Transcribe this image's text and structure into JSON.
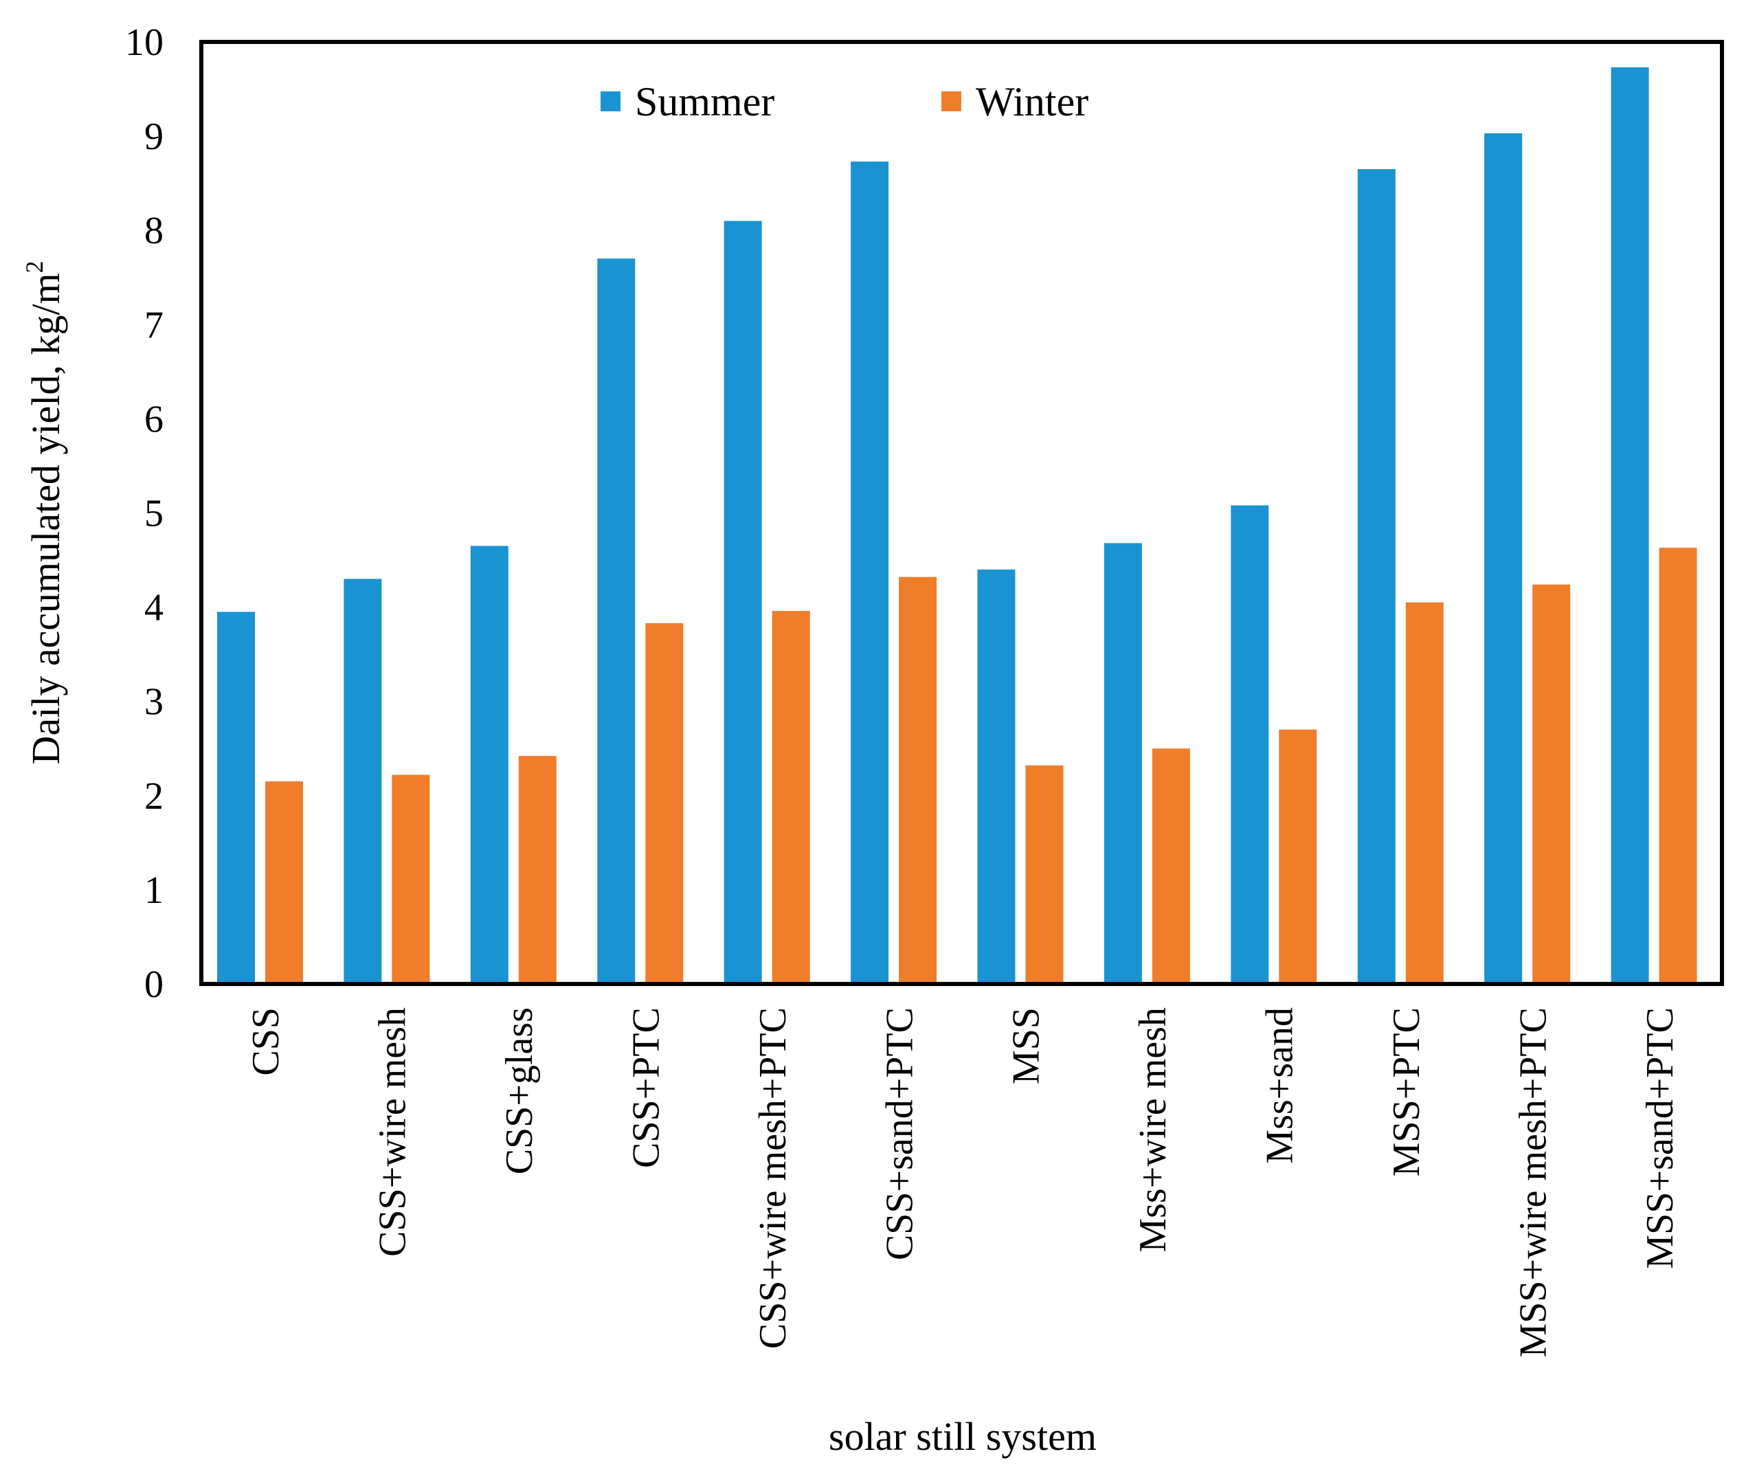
{
  "chart_data": {
    "type": "bar",
    "title": "",
    "xlabel": "solar still system",
    "ylabel": "Daily accumulated yield, kg/m",
    "ylabel_superscript": "2",
    "ylim": [
      0,
      10
    ],
    "yticks": [
      "0",
      "1",
      "2",
      "3",
      "4",
      "5",
      "6",
      "7",
      "8",
      "9",
      "10"
    ],
    "categories": [
      "CSS",
      "CSS+wire mesh",
      "CSS+glass",
      "CSS+PTC",
      "CSS+wire mesh+PTC",
      "CSS+sand+PTC",
      "MSS",
      "Mss+wire mesh",
      "Mss+sand",
      "MSS+PTC",
      "MSS+wire mesh+PTC",
      "MSS+sand+PTC"
    ],
    "series": [
      {
        "name": "Summer",
        "color": "#1A93D3",
        "values": [
          3.95,
          4.3,
          4.65,
          7.7,
          8.1,
          8.73,
          4.4,
          4.68,
          5.08,
          8.65,
          9.03,
          9.73
        ]
      },
      {
        "name": "Winter",
        "color": "#F07D2A",
        "values": [
          2.15,
          2.22,
          2.42,
          3.83,
          3.96,
          4.32,
          2.32,
          2.5,
          2.7,
          4.05,
          4.24,
          4.63
        ]
      }
    ],
    "grid": false,
    "legend_position": "top-center"
  }
}
